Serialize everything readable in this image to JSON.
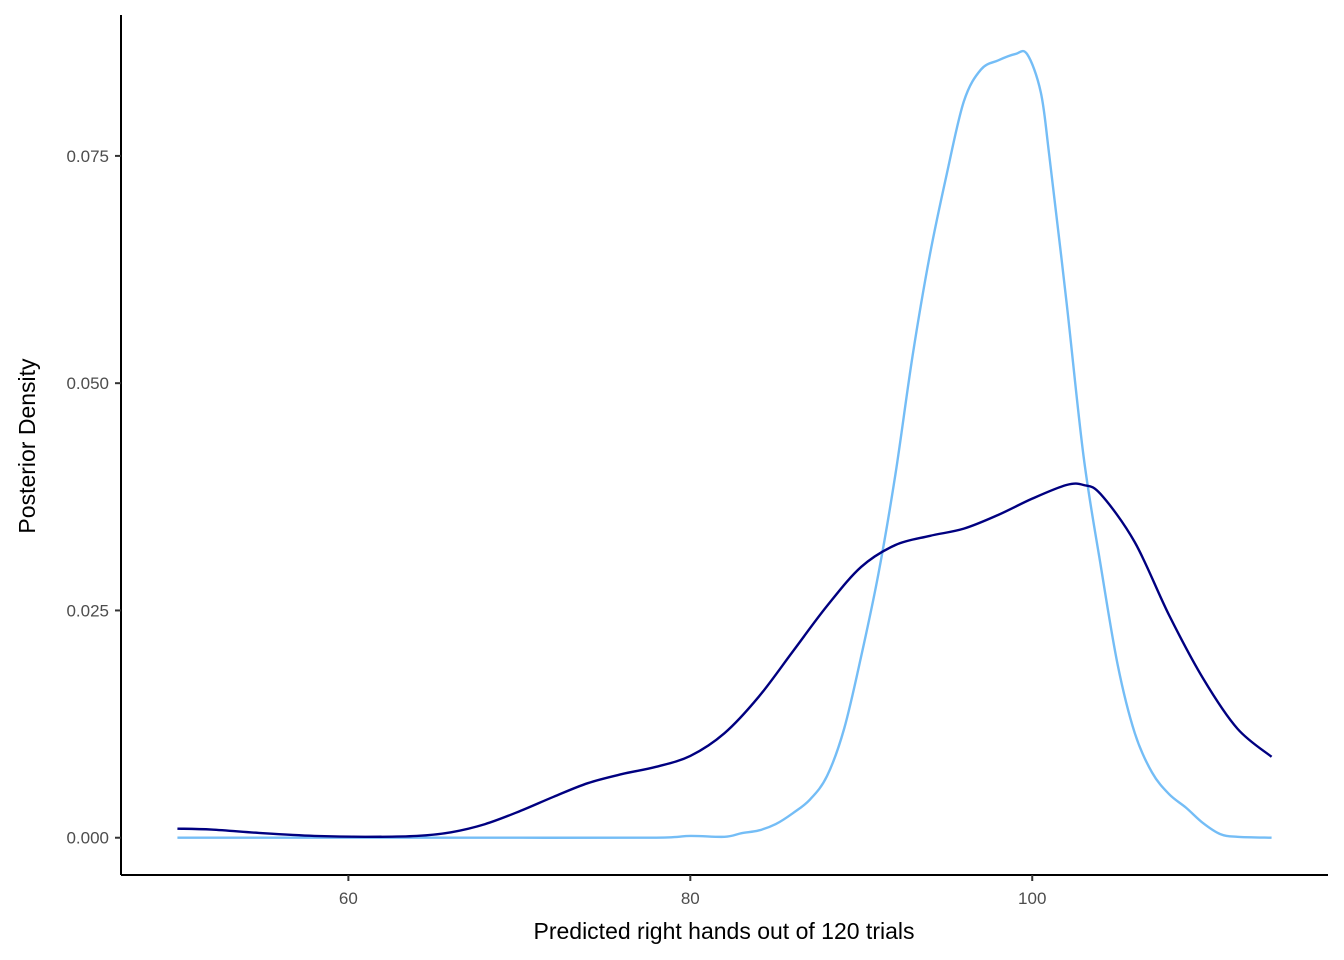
{
  "chart_data": {
    "type": "line",
    "title": "",
    "xlabel": "Predicted right hands out of 120 trials",
    "ylabel": "Posterior Density",
    "xlim": [
      46.7,
      117.3
    ],
    "ylim": [
      -0.0041,
      0.0905
    ],
    "x_ticks": [
      60,
      80,
      100
    ],
    "x_tick_labels": [
      "60",
      "80",
      "100"
    ],
    "y_ticks": [
      0.0,
      0.025,
      0.05,
      0.075
    ],
    "y_tick_labels": [
      "0.000",
      "0.025",
      "0.050",
      "0.075"
    ],
    "grid": false,
    "legend": "none",
    "series": [
      {
        "color": "#74BDF6",
        "points": [
          [
            50,
            0
          ],
          [
            60,
            0
          ],
          [
            70,
            0
          ],
          [
            78,
            0
          ],
          [
            80,
            0.0002
          ],
          [
            82,
            0.0001
          ],
          [
            83,
            0.0005
          ],
          [
            84,
            0.0008
          ],
          [
            85,
            0.0015
          ],
          [
            86,
            0.0027
          ],
          [
            87,
            0.0042
          ],
          [
            88,
            0.0068
          ],
          [
            89,
            0.012
          ],
          [
            90,
            0.02
          ],
          [
            91,
            0.029
          ],
          [
            92,
            0.04
          ],
          [
            93,
            0.053
          ],
          [
            94,
            0.064
          ],
          [
            95,
            0.073
          ],
          [
            96,
            0.081
          ],
          [
            97,
            0.0845
          ],
          [
            98,
            0.0855
          ],
          [
            99,
            0.0862
          ],
          [
            99.7,
            0.0862
          ],
          [
            100.5,
            0.082
          ],
          [
            101,
            0.075
          ],
          [
            102,
            0.059
          ],
          [
            103,
            0.042
          ],
          [
            104,
            0.03
          ],
          [
            105,
            0.019
          ],
          [
            106,
            0.0115
          ],
          [
            107,
            0.0072
          ],
          [
            108,
            0.0048
          ],
          [
            109,
            0.0033
          ],
          [
            110,
            0.0016
          ],
          [
            111,
            0.0004
          ],
          [
            112,
            0.0001
          ],
          [
            114,
            0
          ]
        ]
      },
      {
        "color": "#000080",
        "points": [
          [
            50,
            0.001
          ],
          [
            52,
            0.0009
          ],
          [
            55,
            0.0005
          ],
          [
            58,
            0.0002
          ],
          [
            61,
            0.0001
          ],
          [
            64,
            0.0002
          ],
          [
            66,
            0.0006
          ],
          [
            68,
            0.0015
          ],
          [
            70,
            0.0029
          ],
          [
            72,
            0.0045
          ],
          [
            74,
            0.006
          ],
          [
            76,
            0.007
          ],
          [
            78,
            0.0078
          ],
          [
            80,
            0.009
          ],
          [
            82,
            0.0115
          ],
          [
            84,
            0.0155
          ],
          [
            86,
            0.0205
          ],
          [
            88,
            0.0255
          ],
          [
            90,
            0.0298
          ],
          [
            92,
            0.0322
          ],
          [
            94,
            0.0332
          ],
          [
            96,
            0.034
          ],
          [
            98,
            0.0355
          ],
          [
            100,
            0.0373
          ],
          [
            102,
            0.0388
          ],
          [
            103,
            0.0388
          ],
          [
            104,
            0.0378
          ],
          [
            106,
            0.0325
          ],
          [
            108,
            0.0245
          ],
          [
            110,
            0.0175
          ],
          [
            112,
            0.012
          ],
          [
            114,
            0.0089
          ]
        ]
      }
    ]
  }
}
